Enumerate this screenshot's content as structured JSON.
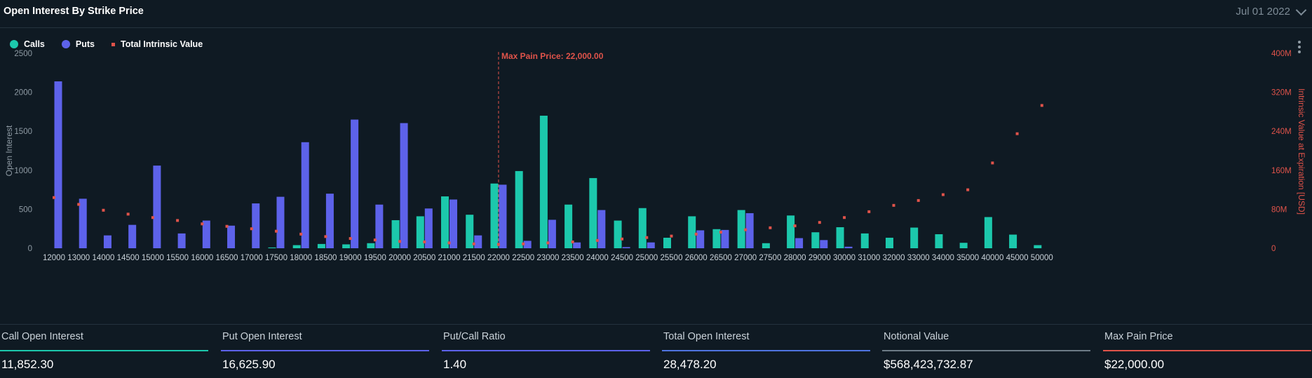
{
  "header": {
    "title": "Open Interest By Strike Price",
    "date": "Jul 01 2022"
  },
  "legend": {
    "calls": "Calls",
    "puts": "Puts",
    "intrinsic": "Total Intrinsic Value"
  },
  "colors": {
    "calls": "#1cc8ac",
    "puts": "#5d62ea",
    "intrinsic": "#e0534a",
    "total": "#4f74e0",
    "notional": "#6d7b86"
  },
  "chart_data": {
    "type": "bar",
    "categories": [
      "12000",
      "13000",
      "14000",
      "14500",
      "15000",
      "15500",
      "16000",
      "16500",
      "17000",
      "17500",
      "18000",
      "18500",
      "19000",
      "19500",
      "20000",
      "20500",
      "21000",
      "21500",
      "22000",
      "22500",
      "23000",
      "23500",
      "24000",
      "24500",
      "25000",
      "25500",
      "26000",
      "26500",
      "27000",
      "27500",
      "28000",
      "29000",
      "30000",
      "31000",
      "32000",
      "33000",
      "34000",
      "35000",
      "40000",
      "45000",
      "50000"
    ],
    "series": [
      {
        "name": "Calls",
        "type": "bar",
        "axis": "left",
        "values": [
          0,
          0,
          0,
          0,
          0,
          0,
          0,
          0,
          0,
          10,
          40,
          55,
          50,
          65,
          360,
          410,
          665,
          430,
          830,
          990,
          1700,
          560,
          900,
          355,
          515,
          135,
          410,
          245,
          490,
          65,
          420,
          205,
          270,
          190,
          135,
          265,
          180,
          70,
          400,
          175,
          40
        ]
      },
      {
        "name": "Puts",
        "type": "bar",
        "axis": "left",
        "values": [
          2140,
          635,
          165,
          300,
          1060,
          190,
          355,
          290,
          575,
          660,
          1360,
          700,
          1650,
          560,
          1605,
          510,
          625,
          165,
          815,
          95,
          365,
          75,
          490,
          15,
          75,
          0,
          230,
          235,
          450,
          0,
          130,
          105,
          20,
          0,
          0,
          0,
          0,
          0,
          0,
          0,
          0
        ]
      },
      {
        "name": "Total Intrinsic Value",
        "type": "scatter",
        "axis": "right",
        "values": [
          104,
          90,
          78,
          70,
          63,
          57,
          50,
          45,
          40,
          35,
          29,
          24,
          20,
          17,
          14,
          13,
          11,
          9,
          8,
          9,
          11,
          13,
          16,
          19,
          22,
          25,
          29,
          33,
          38,
          42,
          46,
          53,
          63,
          75,
          88,
          98,
          110,
          120,
          175,
          235,
          293
        ]
      }
    ],
    "xlabel": "",
    "ylabel": "Open Interest",
    "y2label": "Intrinsic Value at Expiration [USD]",
    "ylim": [
      0,
      2500
    ],
    "yticks": [
      "0",
      "500",
      "1000",
      "1500",
      "2000",
      "2500"
    ],
    "y2lim": [
      0,
      400
    ],
    "y2ticks": [
      "0",
      "80M",
      "160M",
      "240M",
      "320M",
      "400M"
    ],
    "annotation": {
      "label": "Max Pain Price: 22,000.00",
      "category": "22000"
    },
    "grid": false
  },
  "stats": [
    {
      "label": "Call Open Interest",
      "value": "11,852.30",
      "color": "#1cc8ac"
    },
    {
      "label": "Put Open Interest",
      "value": "16,625.90",
      "color": "#5d62ea"
    },
    {
      "label": "Put/Call Ratio",
      "value": "1.40",
      "color": "#5d62ea"
    },
    {
      "label": "Total Open Interest",
      "value": "28,478.20",
      "color": "#4f74e0"
    },
    {
      "label": "Notional Value",
      "value": "$568,423,732.87",
      "color": "#6d7b86"
    },
    {
      "label": "Max Pain Price",
      "value": "$22,000.00",
      "color": "#e0534a"
    }
  ]
}
